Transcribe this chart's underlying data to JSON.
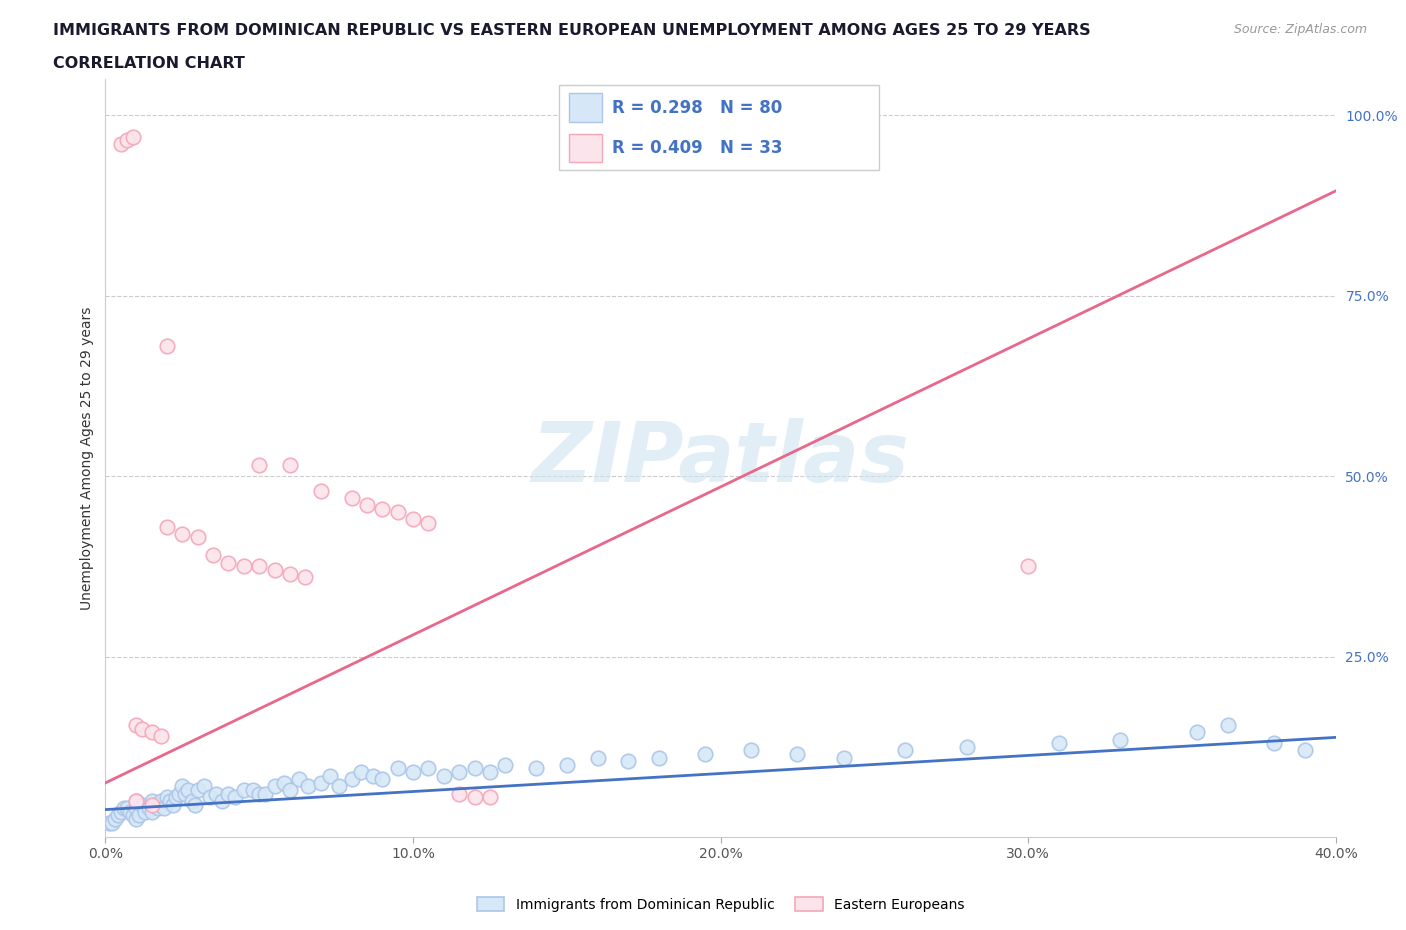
{
  "title_line1": "IMMIGRANTS FROM DOMINICAN REPUBLIC VS EASTERN EUROPEAN UNEMPLOYMENT AMONG AGES 25 TO 29 YEARS",
  "title_line2": "CORRELATION CHART",
  "source": "Source: ZipAtlas.com",
  "ylabel": "Unemployment Among Ages 25 to 29 years",
  "xlim": [
    0.0,
    0.4
  ],
  "ylim": [
    0.0,
    1.05
  ],
  "xtick_vals": [
    0.0,
    0.1,
    0.2,
    0.3,
    0.4
  ],
  "ytick_right_labels": [
    "100.0%",
    "75.0%",
    "50.0%",
    "25.0%"
  ],
  "ytick_right_vals": [
    1.0,
    0.75,
    0.5,
    0.25
  ],
  "blue_color": "#adc6e8",
  "blue_fill": "#d6e8f7",
  "blue_line_color": "#4472c4",
  "pink_color": "#f4a7b9",
  "pink_fill": "#fce4ec",
  "pink_line_color": "#e8678a",
  "r_blue": 0.298,
  "n_blue": 80,
  "r_pink": 0.409,
  "n_pink": 33,
  "watermark": "ZIPatlas",
  "watermark_color": "#c8d8e8",
  "legend_label_blue": "Immigrants from Dominican Republic",
  "legend_label_pink": "Eastern Europeans",
  "blue_x": [
    0.001,
    0.002,
    0.003,
    0.004,
    0.005,
    0.006,
    0.007,
    0.008,
    0.009,
    0.01,
    0.01,
    0.01,
    0.011,
    0.012,
    0.013,
    0.014,
    0.015,
    0.015,
    0.016,
    0.017,
    0.018,
    0.019,
    0.02,
    0.021,
    0.022,
    0.023,
    0.024,
    0.025,
    0.026,
    0.027,
    0.028,
    0.029,
    0.03,
    0.032,
    0.034,
    0.036,
    0.038,
    0.04,
    0.042,
    0.045,
    0.048,
    0.05,
    0.052,
    0.055,
    0.058,
    0.06,
    0.063,
    0.066,
    0.07,
    0.073,
    0.076,
    0.08,
    0.083,
    0.087,
    0.09,
    0.095,
    0.1,
    0.105,
    0.11,
    0.115,
    0.12,
    0.125,
    0.13,
    0.14,
    0.15,
    0.16,
    0.17,
    0.18,
    0.195,
    0.21,
    0.225,
    0.24,
    0.26,
    0.28,
    0.31,
    0.33,
    0.355,
    0.365,
    0.38,
    0.39
  ],
  "blue_y": [
    0.02,
    0.02,
    0.025,
    0.03,
    0.035,
    0.04,
    0.04,
    0.035,
    0.03,
    0.025,
    0.04,
    0.05,
    0.03,
    0.045,
    0.035,
    0.04,
    0.05,
    0.035,
    0.045,
    0.04,
    0.05,
    0.04,
    0.055,
    0.05,
    0.045,
    0.055,
    0.06,
    0.07,
    0.06,
    0.065,
    0.05,
    0.045,
    0.065,
    0.07,
    0.055,
    0.06,
    0.05,
    0.06,
    0.055,
    0.065,
    0.065,
    0.06,
    0.06,
    0.07,
    0.075,
    0.065,
    0.08,
    0.07,
    0.075,
    0.085,
    0.07,
    0.08,
    0.09,
    0.085,
    0.08,
    0.095,
    0.09,
    0.095,
    0.085,
    0.09,
    0.095,
    0.09,
    0.1,
    0.095,
    0.1,
    0.11,
    0.105,
    0.11,
    0.115,
    0.12,
    0.115,
    0.11,
    0.12,
    0.125,
    0.13,
    0.135,
    0.145,
    0.155,
    0.13,
    0.12
  ],
  "pink_x": [
    0.005,
    0.007,
    0.009,
    0.05,
    0.06,
    0.07,
    0.08,
    0.085,
    0.09,
    0.095,
    0.1,
    0.105,
    0.01,
    0.012,
    0.015,
    0.018,
    0.02,
    0.025,
    0.03,
    0.035,
    0.04,
    0.045,
    0.05,
    0.055,
    0.06,
    0.065,
    0.115,
    0.12,
    0.125,
    0.02,
    0.3,
    0.01,
    0.015
  ],
  "pink_y": [
    0.96,
    0.965,
    0.97,
    0.515,
    0.515,
    0.48,
    0.47,
    0.46,
    0.455,
    0.45,
    0.44,
    0.435,
    0.155,
    0.15,
    0.145,
    0.14,
    0.43,
    0.42,
    0.415,
    0.39,
    0.38,
    0.375,
    0.375,
    0.37,
    0.365,
    0.36,
    0.06,
    0.055,
    0.055,
    0.68,
    0.375,
    0.05,
    0.045
  ],
  "blue_trendline_x": [
    0.0,
    0.4
  ],
  "blue_trendline_y": [
    0.038,
    0.138
  ],
  "pink_trendline_x": [
    0.0,
    0.4
  ],
  "pink_trendline_y": [
    0.075,
    0.895
  ]
}
